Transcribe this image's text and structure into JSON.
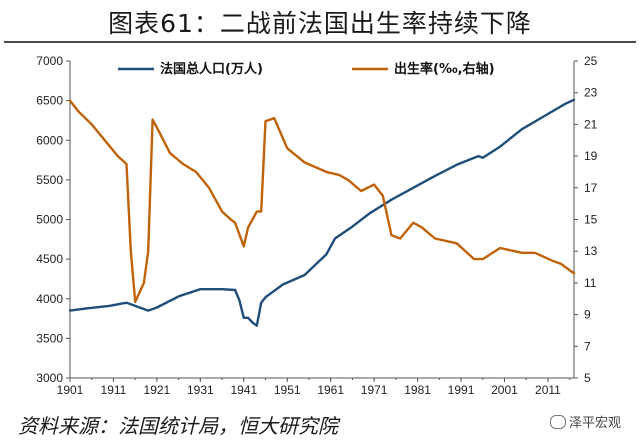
{
  "title": "图表61：二战前法国出生率持续下降",
  "source": "资料来源：法国统计局，恒大研究院",
  "watermark": "泽平宏观",
  "colors": {
    "population": "#1f4e7a",
    "birth_rate": "#c0620a",
    "axis": "#555555"
  },
  "chart_data": {
    "type": "line",
    "x_ticks": [
      "1901",
      "1911",
      "1921",
      "1931",
      "1941",
      "1951",
      "1961",
      "1971",
      "1981",
      "1991",
      "2001",
      "2011"
    ],
    "xlim": [
      1901,
      2017
    ],
    "y_left": {
      "min": 3000,
      "max": 7000,
      "ticks": [
        "3000",
        "3500",
        "4000",
        "4500",
        "5000",
        "5500",
        "6000",
        "6500",
        "7000"
      ]
    },
    "y_right": {
      "min": 5,
      "max": 25,
      "ticks": [
        "5",
        "7",
        "9",
        "11",
        "13",
        "15",
        "17",
        "19",
        "21",
        "23",
        "25"
      ]
    },
    "legend_position": "top",
    "grid": false,
    "series": [
      {
        "name": "法国总人口(万人)",
        "axis": "left",
        "x": [
          1901,
          1905,
          1910,
          1914,
          1919,
          1921,
          1926,
          1931,
          1936,
          1939,
          1940,
          1941,
          1942,
          1943,
          1944,
          1945,
          1946,
          1950,
          1955,
          1960,
          1962,
          1966,
          1970,
          1975,
          1980,
          1985,
          1990,
          1995,
          1996,
          2000,
          2005,
          2010,
          2015,
          2017
        ],
        "values": [
          3850,
          3880,
          3910,
          3950,
          3850,
          3890,
          4030,
          4120,
          4120,
          4110,
          3980,
          3760,
          3760,
          3700,
          3660,
          3950,
          4020,
          4180,
          4300,
          4560,
          4760,
          4910,
          5080,
          5250,
          5400,
          5550,
          5690,
          5800,
          5780,
          5920,
          6140,
          6300,
          6460,
          6510
        ]
      },
      {
        "name": "出生率(‰,右轴)",
        "axis": "right",
        "x": [
          1901,
          1903,
          1906,
          1909,
          1912,
          1914,
          1915,
          1916,
          1918,
          1919,
          1920,
          1921,
          1924,
          1927,
          1930,
          1933,
          1936,
          1938,
          1939,
          1941,
          1942,
          1944,
          1945,
          1946,
          1948,
          1951,
          1955,
          1960,
          1963,
          1965,
          1968,
          1971,
          1973,
          1975,
          1977,
          1980,
          1982,
          1985,
          1990,
          1994,
          1996,
          2000,
          2005,
          2008,
          2012,
          2014,
          2017
        ],
        "values": [
          22.5,
          21.8,
          21.0,
          20.0,
          19.0,
          18.5,
          13.0,
          9.8,
          11.0,
          13.0,
          21.3,
          20.8,
          19.2,
          18.5,
          18.0,
          17.0,
          15.5,
          15.0,
          14.8,
          13.3,
          14.5,
          15.5,
          15.5,
          21.2,
          21.4,
          19.5,
          18.6,
          18.0,
          17.8,
          17.5,
          16.8,
          17.2,
          16.5,
          14.0,
          13.8,
          14.8,
          14.5,
          13.8,
          13.5,
          12.5,
          12.5,
          13.2,
          12.9,
          12.9,
          12.4,
          12.2,
          11.6
        ]
      }
    ]
  }
}
